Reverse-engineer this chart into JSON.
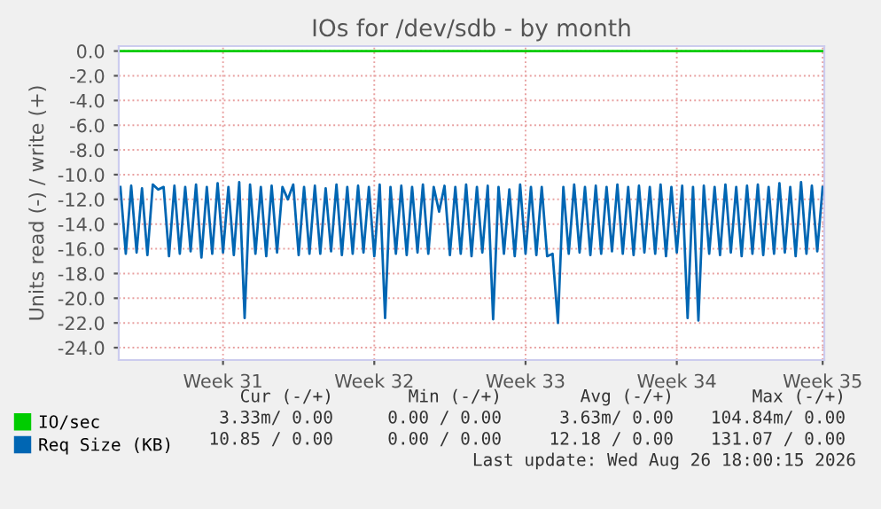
{
  "chart_data": {
    "type": "line",
    "title": "IOs for /dev/sdb - by month",
    "ylabel": "Units read (-) / write (+)",
    "categories": [
      null,
      null,
      null,
      null,
      null,
      null,
      null,
      null,
      null,
      null,
      null,
      null,
      null,
      null,
      null,
      null,
      null,
      null,
      null,
      "Week 31",
      null,
      null,
      null,
      null,
      null,
      null,
      null,
      null,
      null,
      null,
      null,
      null,
      null,
      null,
      null,
      null,
      null,
      null,
      null,
      null,
      null,
      null,
      null,
      null,
      null,
      null,
      null,
      "Week 32",
      null,
      null,
      null,
      null,
      null,
      null,
      null,
      null,
      null,
      null,
      null,
      null,
      null,
      null,
      null,
      null,
      null,
      null,
      null,
      null,
      null,
      null,
      null,
      null,
      null,
      null,
      null,
      "Week 33",
      null,
      null,
      null,
      null,
      null,
      null,
      null,
      null,
      null,
      null,
      null,
      null,
      null,
      null,
      null,
      null,
      null,
      null,
      null,
      null,
      null,
      null,
      null,
      null,
      null,
      null,
      null,
      "Week 34",
      null,
      null,
      null,
      null,
      null,
      null,
      null,
      null,
      null,
      null,
      null,
      null,
      null,
      null,
      null,
      null,
      null,
      null,
      null,
      null,
      null,
      null,
      null,
      null,
      null,
      null,
      "Week 35"
    ],
    "series": [
      {
        "name": "IO/sec",
        "color": "#00cc00",
        "values": [
          0,
          0,
          0,
          0,
          0,
          0,
          0,
          0,
          0,
          0,
          0,
          0,
          0,
          0,
          0,
          0,
          0,
          0,
          0,
          0,
          0,
          0,
          0,
          0,
          0,
          0,
          0,
          0,
          0,
          0,
          0,
          0,
          0,
          0,
          0,
          0,
          0,
          0,
          0,
          0,
          0,
          0,
          0,
          0,
          0,
          0,
          0,
          0,
          0,
          0,
          0,
          0,
          0,
          0,
          0,
          0,
          0,
          0,
          0,
          0,
          0,
          0,
          0,
          0,
          0,
          0,
          0,
          0,
          0,
          0,
          0,
          0,
          0,
          0,
          0,
          0,
          0,
          0,
          0,
          0,
          0,
          0,
          0,
          0,
          0,
          0,
          0,
          0,
          0,
          0,
          0,
          0,
          0,
          0,
          0,
          0,
          0,
          0,
          0,
          0,
          0,
          0,
          0,
          0,
          0,
          0,
          0,
          0,
          0,
          0,
          0,
          0,
          0,
          0,
          0,
          0,
          0,
          0,
          0,
          0,
          0,
          0,
          0,
          0,
          0,
          0,
          0,
          0,
          0,
          0,
          0
        ]
      },
      {
        "name": "Req Size (KB)",
        "color": "#0066b3",
        "values": [
          -11.0,
          -16.4,
          -10.9,
          -16.3,
          -11.1,
          -16.5,
          -10.8,
          -11.2,
          -11.0,
          -16.6,
          -10.9,
          -16.4,
          -11.0,
          -16.2,
          -10.8,
          -16.7,
          -11.0,
          -16.4,
          -10.7,
          -16.3,
          -11.0,
          -16.5,
          -10.6,
          -21.6,
          -10.8,
          -16.4,
          -11.0,
          -16.6,
          -10.9,
          -16.3,
          -11.0,
          -12.0,
          -10.8,
          -16.5,
          -11.0,
          -16.4,
          -10.9,
          -16.4,
          -11.1,
          -16.2,
          -10.8,
          -16.5,
          -11.0,
          -16.4,
          -10.9,
          -16.3,
          -11.0,
          -16.6,
          -10.8,
          -21.6,
          -11.0,
          -16.4,
          -10.9,
          -16.5,
          -11.0,
          -16.3,
          -10.8,
          -16.4,
          -11.0,
          -13.0,
          -10.9,
          -16.5,
          -11.0,
          -16.4,
          -10.8,
          -16.6,
          -11.0,
          -16.3,
          -10.9,
          -21.7,
          -11.0,
          -16.4,
          -11.2,
          -16.6,
          -10.8,
          -16.4,
          -11.0,
          -16.5,
          -11.0,
          -16.6,
          -16.4,
          -22.0,
          -11.0,
          -16.4,
          -10.8,
          -16.3,
          -11.0,
          -16.5,
          -10.9,
          -16.4,
          -11.0,
          -16.2,
          -10.8,
          -16.4,
          -11.0,
          -16.5,
          -10.9,
          -16.3,
          -11.0,
          -16.4,
          -10.8,
          -16.6,
          -11.0,
          -16.3,
          -10.9,
          -21.6,
          -11.0,
          -21.8,
          -10.9,
          -16.4,
          -11.0,
          -16.5,
          -10.8,
          -16.3,
          -11.0,
          -16.6,
          -10.9,
          -16.4,
          -10.8,
          -16.5,
          -11.0,
          -16.4,
          -10.7,
          -16.3,
          -11.0,
          -16.6,
          -10.6,
          -16.4,
          -10.9,
          -16.2,
          -11.0
        ]
      }
    ],
    "ylim": [
      -25,
      0.4
    ],
    "yticks": [
      {
        "value": 0,
        "label": "0.0"
      },
      {
        "value": -2,
        "label": "-2.0"
      },
      {
        "value": -4,
        "label": "-4.0"
      },
      {
        "value": -6,
        "label": "-6.0"
      },
      {
        "value": -8,
        "label": "-8.0"
      },
      {
        "value": -10,
        "label": "-10.0"
      },
      {
        "value": -12,
        "label": "-12.0"
      },
      {
        "value": -14,
        "label": "-14.0"
      },
      {
        "value": -16,
        "label": "-16.0"
      },
      {
        "value": -18,
        "label": "-18.0"
      },
      {
        "value": -20,
        "label": "-20.0"
      },
      {
        "value": -22,
        "label": "-22.0"
      },
      {
        "value": -24,
        "label": "-24.0"
      }
    ],
    "grid": true,
    "legend": "bottom",
    "marker": "none",
    "line_style": "solid",
    "annotations": [
      "Cur (-/+)",
      "Min (-/+)",
      "Avg (-/+)",
      "Max (-/+)",
      "3.33m/ 0.00",
      "0.00 / 0.00",
      "3.63m/ 0.00",
      "104.84m/ 0.00",
      "10.85 / 0.00",
      "0.00 / 0.00",
      "12.18 / 0.00",
      "131.07 / 0.00",
      "Last update: Wed Aug 26 18:00:15 2026"
    ]
  }
}
